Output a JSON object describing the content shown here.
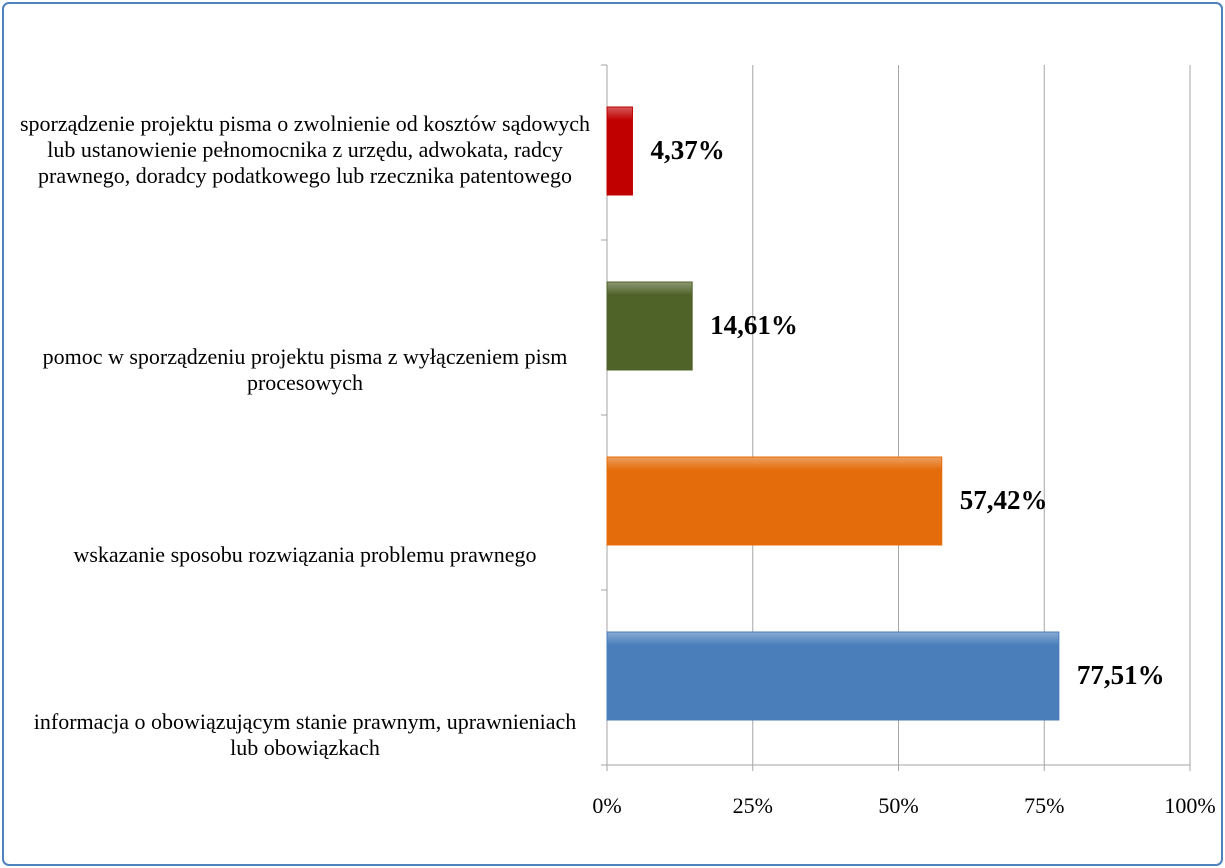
{
  "chart_data": {
    "type": "bar",
    "orientation": "horizontal",
    "categories": [
      "sporządzenie projektu pisma o zwolnienie od kosztów sądowych lub ustanowienie pełnomocnika z urzędu, adwokata, radcy prawnego, doradcy podatkowego lub rzecznika patentowego",
      "pomoc w sporządzeniu projektu pisma z wyłączeniem pism procesowych",
      "wskazanie sposobu rozwiązania problemu prawnego",
      "informacja o obowiązującym stanie prawnym, uprawnieniach lub obowiązkach"
    ],
    "values": [
      4.37,
      14.61,
      57.42,
      77.51
    ],
    "value_labels": [
      "4,37%",
      "14,61%",
      "57,42%",
      "77,51%"
    ],
    "colors": [
      "#c00000",
      "#4f6228",
      "#e46c0a",
      "#4a7ebb"
    ],
    "xlim": [
      0,
      100
    ],
    "xticks": [
      {
        "value": 0,
        "label": "0%"
      },
      {
        "value": 25,
        "label": "25%"
      },
      {
        "value": 50,
        "label": "50%"
      },
      {
        "value": 75,
        "label": "75%"
      },
      {
        "value": 100,
        "label": "100%"
      }
    ],
    "grid": true
  }
}
